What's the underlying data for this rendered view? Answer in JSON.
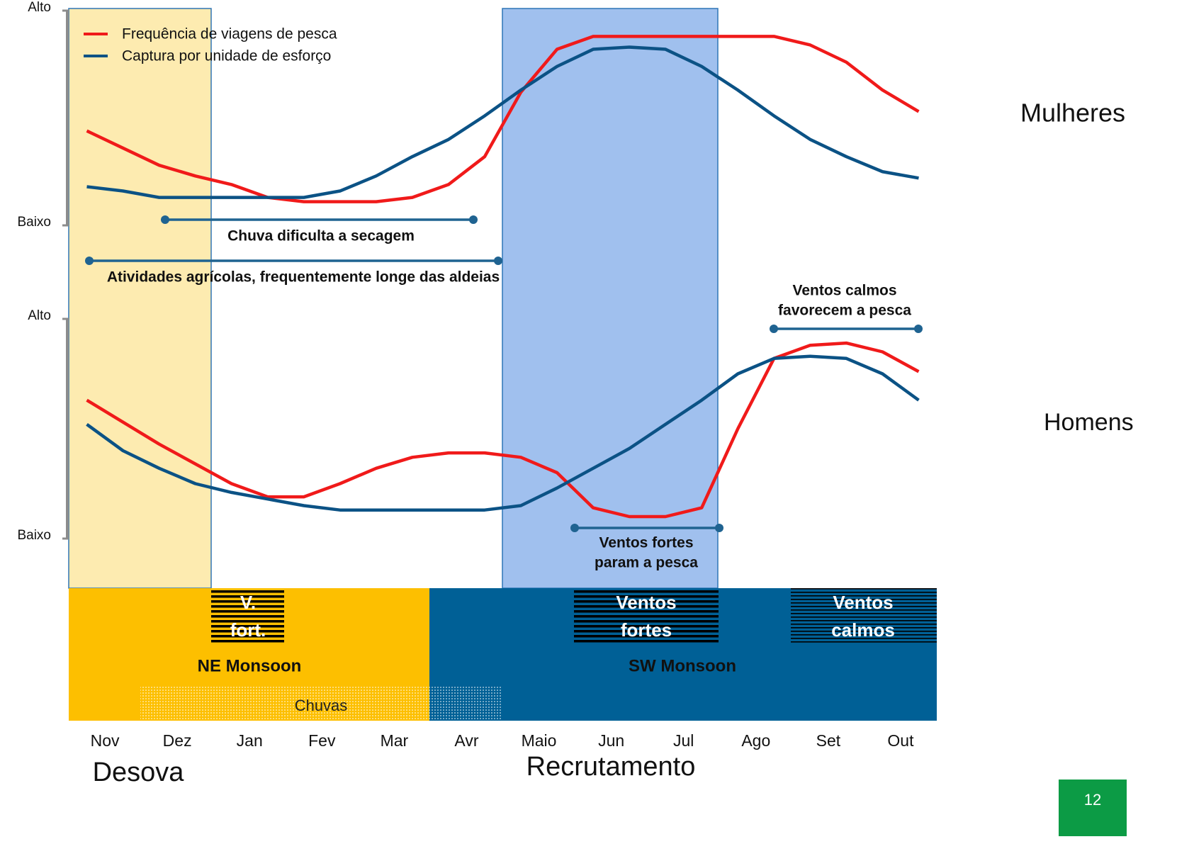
{
  "chart_data": [
    {
      "type": "line",
      "title": "Mulheres",
      "x": [
        0.25,
        0.75,
        1.25,
        1.75,
        2.25,
        2.75,
        3.25,
        3.75,
        4.25,
        4.75,
        5.25,
        5.75,
        6.25,
        6.75,
        7.25,
        7.75,
        8.25,
        8.75,
        9.25,
        9.75,
        10.25,
        10.75,
        11.25,
        11.75
      ],
      "xlim": [
        0,
        12
      ],
      "ylim": [
        0,
        100
      ],
      "yticks": [
        {
          "value": 0,
          "label": "Baixo"
        },
        {
          "value": 100,
          "label": "Alto"
        }
      ],
      "series": [
        {
          "name": "Frequência de viagens de pesca",
          "color": "#f01a1a",
          "values": [
            44,
            36,
            28,
            23,
            19,
            13,
            11,
            11,
            11,
            13,
            19,
            32,
            62,
            82,
            88,
            88,
            88,
            88,
            88,
            88,
            84,
            76,
            63,
            53
          ]
        },
        {
          "name": "Captura por unidade de esforço",
          "color": "#0b5285",
          "values": [
            18,
            16,
            13,
            13,
            13,
            13,
            13,
            16,
            23,
            32,
            40,
            51,
            63,
            74,
            82,
            83,
            82,
            74,
            63,
            51,
            40,
            32,
            25,
            22
          ]
        }
      ],
      "annotations": [
        [
          "Chuva dificulta a secagem"
        ],
        [
          "Atividades agrícolas, frequentemente longe das aldeias"
        ]
      ]
    },
    {
      "type": "line",
      "title": "Homens",
      "x": [
        0.25,
        0.75,
        1.25,
        1.75,
        2.25,
        2.75,
        3.25,
        3.75,
        4.25,
        4.75,
        5.25,
        5.75,
        6.25,
        6.75,
        7.25,
        7.75,
        8.25,
        8.75,
        9.25,
        9.75,
        10.25,
        10.75,
        11.25,
        11.75
      ],
      "xlim": [
        0,
        12
      ],
      "ylim": [
        0,
        100
      ],
      "yticks": [
        {
          "value": 0,
          "label": "Baixo"
        },
        {
          "value": 100,
          "label": "Alto"
        }
      ],
      "series": [
        {
          "color": "#f01a1a",
          "values": [
            63,
            53,
            43,
            34,
            25,
            19,
            19,
            25,
            32,
            37,
            39,
            39,
            37,
            30,
            14,
            10,
            10,
            14,
            50,
            82,
            88,
            89,
            85,
            76
          ]
        },
        {
          "color": "#0b5285",
          "values": [
            52,
            40,
            32,
            25,
            21,
            18,
            15,
            13,
            13,
            13,
            13,
            13,
            15,
            23,
            32,
            41,
            52,
            63,
            75,
            82,
            83,
            82,
            75,
            63
          ]
        }
      ],
      "annotations": [
        [
          "Ventos calmos",
          "favorecem a pesca"
        ],
        [
          "Ventos fortes",
          "param a pesca"
        ]
      ]
    }
  ],
  "calendar": {
    "months": [
      "Nov",
      "Dez",
      "Jan",
      "Fev",
      "Mar",
      "Avr",
      "Maio",
      "Jun",
      "Jul",
      "Ago",
      "Set",
      "Out"
    ],
    "seasons": [
      "NE Monsoon",
      "SW Monsoon"
    ],
    "winds": [
      [
        "V.",
        "fort."
      ],
      [
        "Ventos",
        "fortes"
      ],
      [
        "Ventos",
        "calmos"
      ]
    ],
    "rain": "Chuvas",
    "phases": [
      "Desova",
      "Recrutamento"
    ]
  },
  "page_number": 12
}
